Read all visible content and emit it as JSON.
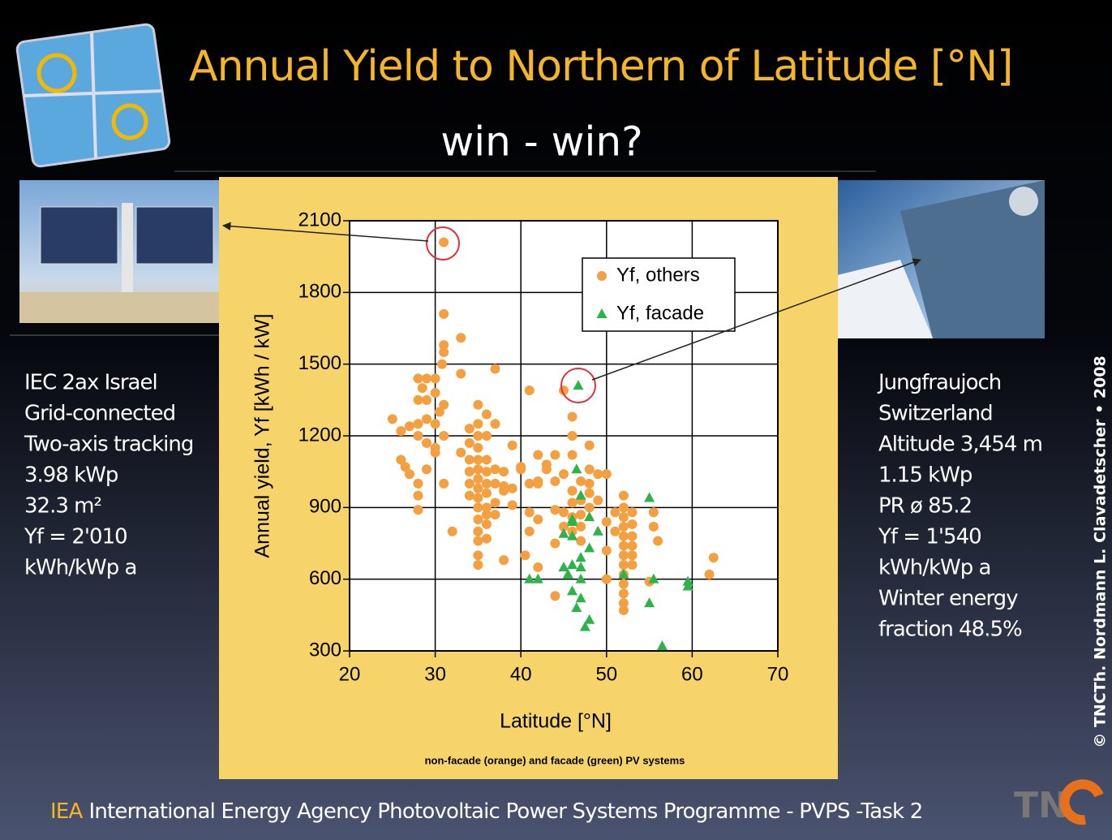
{
  "title": "Annual Yield to Northern of Latitude [°N]",
  "subtitle": "win - win?",
  "left_text": [
    "IEC 2ax Israel",
    "Grid-connected",
    "Two-axis tracking",
    "3.98 kWp",
    "32.3 m²",
    "Yf  = 2'010",
    "kWh/kWp a"
  ],
  "right_text": [
    "Jungfraujoch",
    "Switzerland",
    "Altitude 3,454 m",
    "1.15 kWp",
    "PR ø 85.2",
    "Yf  = 1'540",
    "kWh/kWp a",
    "Winter energy",
    "fraction 48.5%"
  ],
  "copyright": "© TNCTh. Nordmann L. Clavadetscher • 2008",
  "footer": {
    "acronym": "IEA",
    "text": "International Energy Agency Photovoltaic Power Systems Programme - PVPS -Task 2",
    "logo": "TN"
  },
  "chart_data": {
    "type": "scatter",
    "xlabel": "Latitude [°N]",
    "ylabel": "Annual yield, Yf [kWh / kW]",
    "note": "non-facade (orange) and facade (green) PV systems",
    "xlim": [
      20,
      70
    ],
    "ylim": [
      300,
      2100
    ],
    "xticks": [
      20,
      30,
      40,
      50,
      60,
      70
    ],
    "yticks": [
      300,
      600,
      900,
      1200,
      1500,
      1800,
      2100
    ],
    "grid": true,
    "legend": "upper right",
    "series": [
      {
        "name": "Yf, others",
        "color": "#f4a040",
        "marker": "circle",
        "x": [
          31,
          31,
          31,
          31,
          30.8,
          33,
          30,
          29,
          28,
          28.5,
          30,
          31,
          30.5,
          29,
          28,
          28,
          29,
          30,
          31,
          30,
          28,
          27,
          26,
          25,
          26,
          26.5,
          27,
          28,
          28,
          28,
          29,
          30,
          29,
          31,
          32,
          33,
          33,
          34,
          34,
          34,
          34,
          34,
          34,
          35,
          35,
          35,
          35,
          35,
          35,
          35,
          35,
          35,
          35,
          35,
          35,
          35,
          35,
          35,
          36,
          36,
          36,
          36,
          36,
          36,
          36,
          36,
          36,
          36,
          37,
          37,
          37,
          37,
          37,
          37,
          38,
          38,
          38,
          38,
          39,
          39,
          39,
          40,
          40,
          41,
          41,
          41,
          41,
          42,
          42,
          42,
          42,
          43,
          43,
          44,
          44,
          44,
          44,
          45,
          45,
          45,
          45,
          46,
          46,
          46,
          46,
          46,
          46,
          46,
          47,
          47,
          47,
          47,
          47,
          48,
          48,
          48,
          48,
          48,
          49,
          49,
          50,
          50,
          50,
          50,
          51,
          51,
          52,
          52,
          52,
          52,
          52,
          52,
          52,
          52,
          52,
          52,
          52,
          52,
          52,
          53,
          53,
          53,
          53,
          53,
          53,
          55,
          55.5,
          55.5,
          56,
          62,
          62.5,
          44,
          42,
          40.5
        ],
        "values": [
          2010,
          1710,
          1580,
          1550,
          1500,
          1610,
          1440,
          1440,
          1440,
          1400,
          1380,
          1330,
          1300,
          1350,
          1350,
          1250,
          1270,
          1250,
          1200,
          1130,
          1200,
          1240,
          1220,
          1270,
          1100,
          1070,
          1040,
          1000,
          950,
          890,
          1170,
          1150,
          1060,
          1000,
          800,
          1460,
          1130,
          1230,
          1170,
          1100,
          1050,
          1000,
          950,
          1330,
          1250,
          1200,
          1150,
          1100,
          1060,
          1020,
          980,
          940,
          900,
          850,
          800,
          760,
          700,
          660,
          1290,
          1200,
          1100,
          1050,
          1000,
          960,
          900,
          870,
          830,
          770,
          1250,
          1480,
          1060,
          1000,
          920,
          870,
          1050,
          990,
          970,
          680,
          1160,
          980,
          910,
          1070,
          1060,
          1390,
          1000,
          880,
          800,
          1000,
          850,
          1010,
          1120,
          1060,
          1080,
          1120,
          890,
          750,
          1010,
          1390,
          1040,
          880,
          820,
          1120,
          1280,
          1200,
          970,
          920,
          860,
          800,
          1010,
          930,
          870,
          820,
          760,
          1000,
          960,
          900,
          1160,
          1060,
          1040,
          930,
          1040,
          720,
          600,
          840,
          880,
          800,
          950,
          900,
          860,
          820,
          780,
          740,
          700,
          660,
          620,
          580,
          540,
          500,
          470,
          880,
          830,
          780,
          740,
          700,
          660,
          590,
          880,
          820,
          760,
          620,
          690,
          530,
          650,
          700
        ]
      },
      {
        "name": "Yf, facade",
        "color": "#2db34a",
        "marker": "triangle",
        "x": [
          46.7,
          46.5,
          47,
          46,
          46,
          45,
          45,
          46,
          47,
          46,
          47,
          46.5,
          47.5,
          48,
          47,
          48,
          48,
          49,
          41,
          42,
          52,
          55,
          55.5,
          56.5,
          55,
          59.5,
          59.5,
          45.5,
          46,
          47
        ],
        "values": [
          1410,
          1060,
          950,
          850,
          780,
          790,
          650,
          660,
          650,
          550,
          520,
          480,
          400,
          430,
          600,
          730,
          860,
          800,
          600,
          600,
          620,
          940,
          600,
          320,
          500,
          590,
          570,
          620,
          840,
          690
        ]
      }
    ]
  }
}
